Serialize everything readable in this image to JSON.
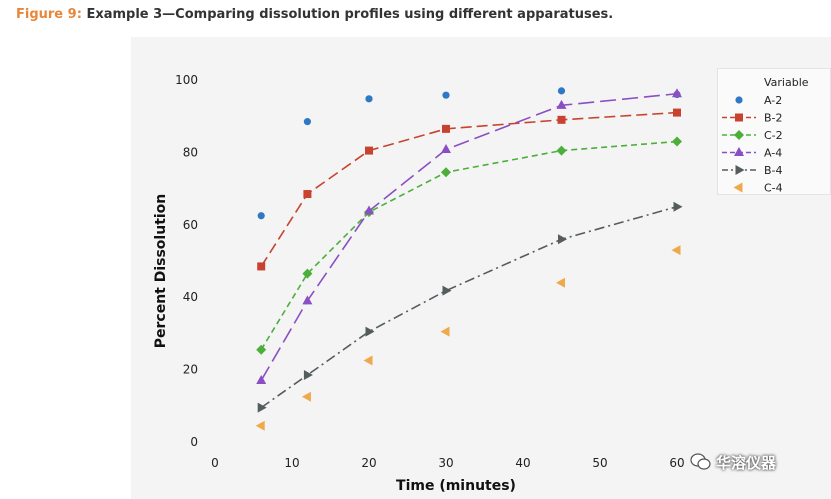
{
  "caption": {
    "label": "Figure 9:",
    "text": "Example 3—Comparing dissolution profiles using different apparatuses."
  },
  "watermark": {
    "text": "华溶仪器"
  },
  "chart_data": {
    "type": "line",
    "xlabel": "Time (minutes)",
    "ylabel": "Percent Dissolution",
    "xlim": [
      0,
      60
    ],
    "ylim": [
      0,
      100
    ],
    "xticks": [
      0,
      10,
      20,
      30,
      40,
      50,
      60
    ],
    "yticks": [
      0,
      20,
      40,
      60,
      80,
      100
    ],
    "grid": false,
    "legend_title": "Variable",
    "legend_position": "right",
    "x": [
      6,
      12,
      20,
      30,
      45,
      60
    ],
    "series": [
      {
        "name": "A-2",
        "values": [
          62.5,
          88.5,
          94.8,
          95.8,
          97,
          96
        ],
        "color": "#2f78c4",
        "marker": "circle",
        "line": "none"
      },
      {
        "name": "B-2",
        "values": [
          48.5,
          68.5,
          80.5,
          86.5,
          89,
          91
        ],
        "color": "#c8432f",
        "marker": "square",
        "line": "dash"
      },
      {
        "name": "C-2",
        "values": [
          25.5,
          46.5,
          63.5,
          74.5,
          80.5,
          83
        ],
        "color": "#4caf3a",
        "marker": "diamond",
        "line": "dash-short"
      },
      {
        "name": "A-4",
        "values": [
          17,
          39,
          63.8,
          80.8,
          93,
          96.2
        ],
        "color": "#8a4fc2",
        "marker": "triangle-up",
        "line": "dash-long"
      },
      {
        "name": "B-4",
        "values": [
          9.5,
          18.5,
          30.5,
          41.8,
          56,
          65
        ],
        "color": "#555c5e",
        "marker": "triangle-right",
        "line": "dash-dot"
      },
      {
        "name": "C-4",
        "values": [
          4.5,
          12.5,
          22.5,
          30.5,
          44,
          53
        ],
        "color": "#f0a94a",
        "marker": "triangle-left",
        "line": "none"
      }
    ]
  }
}
